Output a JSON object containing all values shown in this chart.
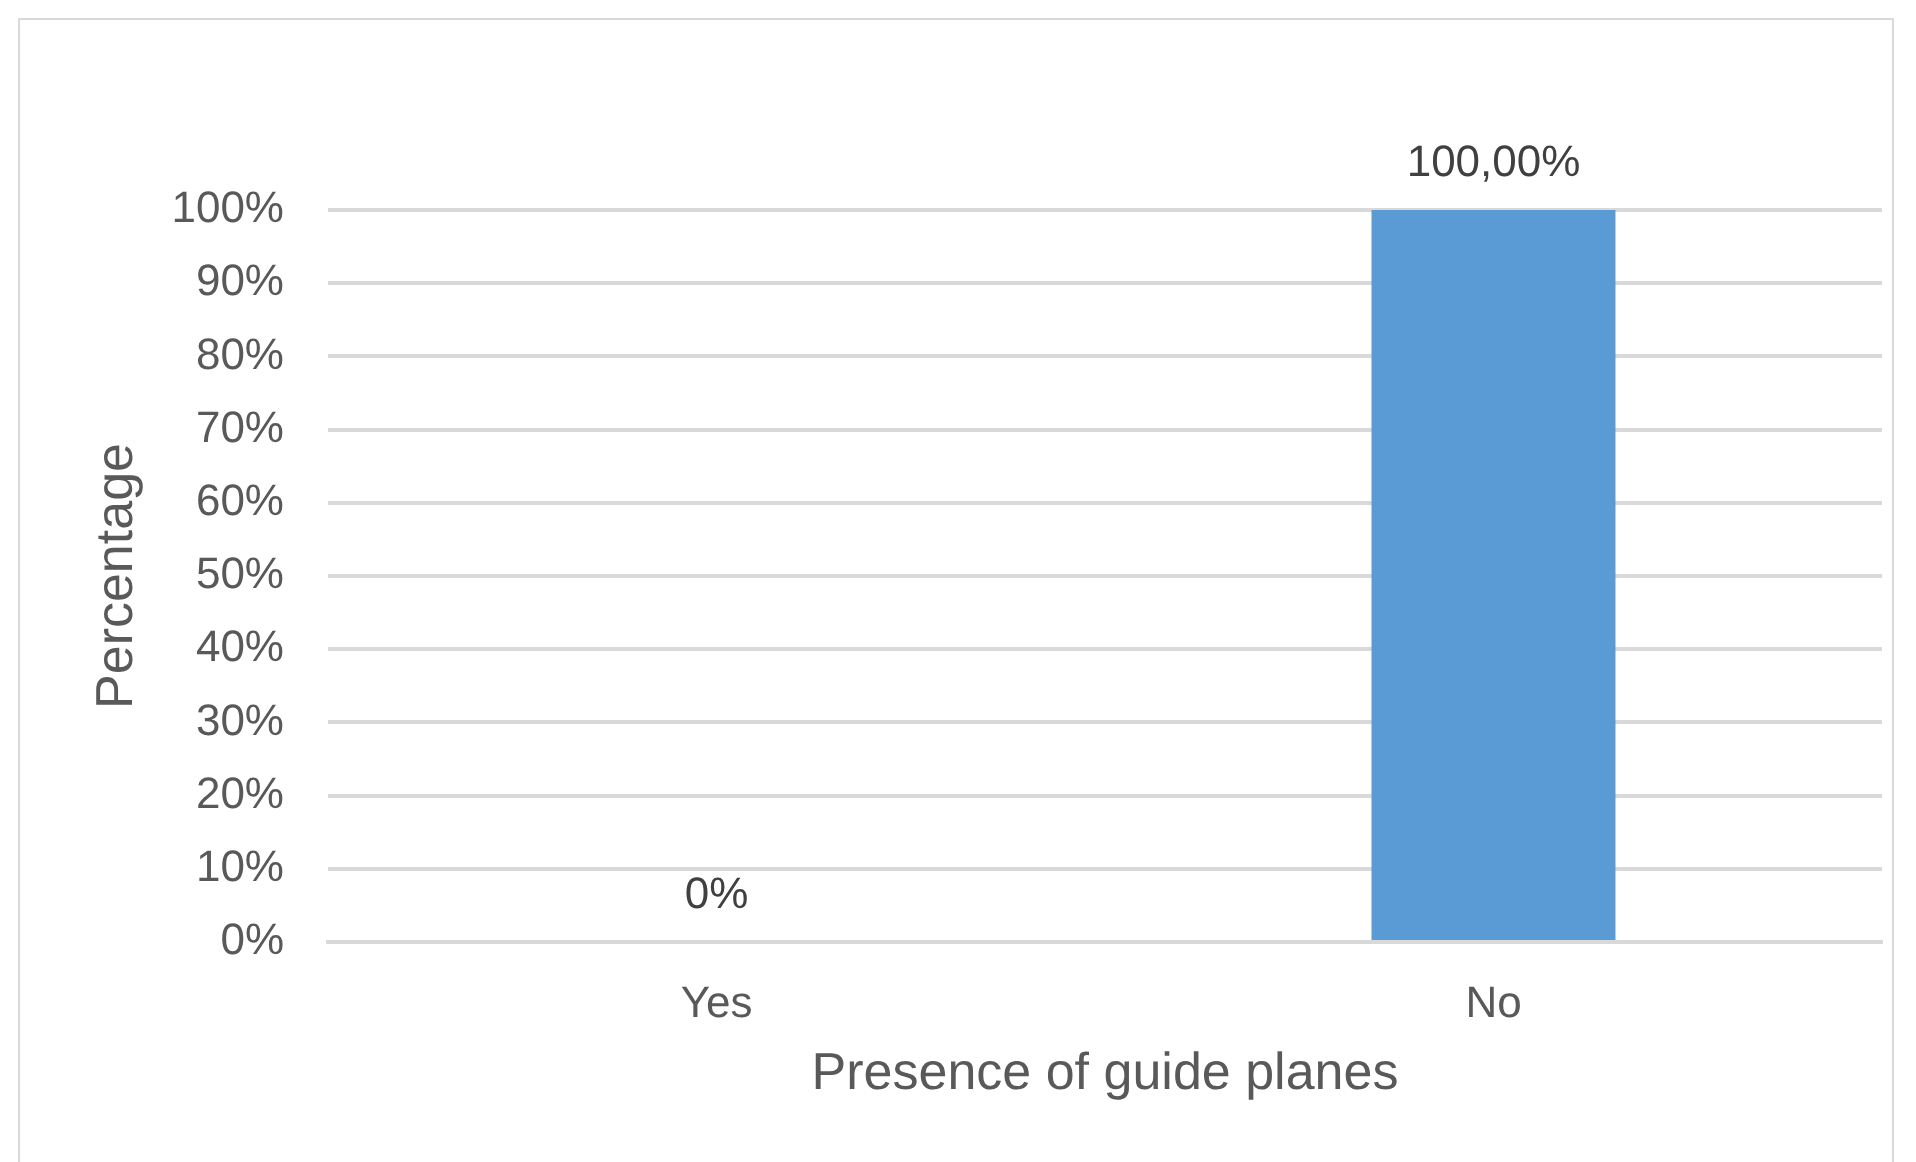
{
  "chart_data": {
    "type": "bar",
    "categories": [
      "Yes",
      "No"
    ],
    "values": [
      0,
      100
    ],
    "color": "#5b9bd5",
    "value_labels": [
      "0%",
      "100,00%"
    ],
    "xlabel": "Presence of guide planes",
    "ylabel": "Percentage",
    "ylim": [
      0,
      100
    ],
    "yticks": [
      {
        "value": 0,
        "label": "0%"
      },
      {
        "value": 10,
        "label": "10%"
      },
      {
        "value": 20,
        "label": "20%"
      },
      {
        "value": 30,
        "label": "30%"
      },
      {
        "value": 40,
        "label": "40%"
      },
      {
        "value": 50,
        "label": "50%"
      },
      {
        "value": 60,
        "label": "60%"
      },
      {
        "value": 70,
        "label": "70%"
      },
      {
        "value": 80,
        "label": "80%"
      },
      {
        "value": 90,
        "label": "90%"
      },
      {
        "value": 100,
        "label": "100%"
      }
    ],
    "grid": "y"
  }
}
